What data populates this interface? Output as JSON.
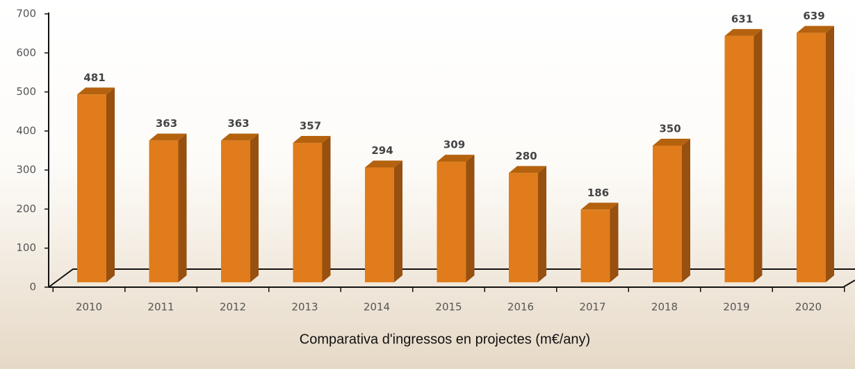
{
  "chart_data": {
    "type": "bar3d",
    "title": "Comparativa d'ingressos en projectes (m€/any)",
    "categories": [
      "2010",
      "2011",
      "2012",
      "2013",
      "2014",
      "2015",
      "2016",
      "2017",
      "2018",
      "2019",
      "2020"
    ],
    "values": [
      481,
      363,
      363,
      357,
      294,
      309,
      280,
      186,
      350,
      631,
      639
    ],
    "color": "#e07c1b",
    "ylim": [
      0,
      700
    ],
    "yticks": [
      0,
      100,
      200,
      300,
      400,
      500,
      600,
      700
    ]
  }
}
